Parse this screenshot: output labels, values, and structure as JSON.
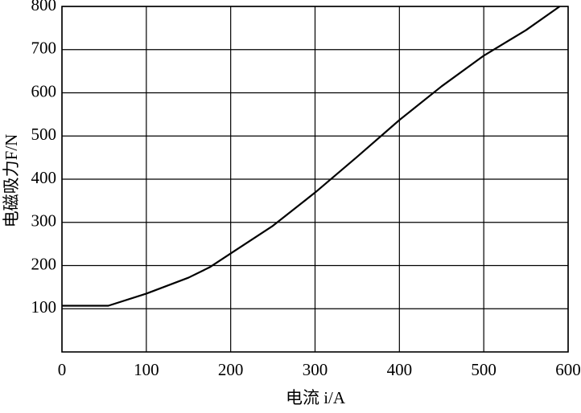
{
  "chart_data": {
    "type": "line",
    "x_label": "电流 i/A",
    "y_label": "电磁吸力F/N",
    "x": [
      0,
      55,
      100,
      150,
      175,
      200,
      250,
      300,
      350,
      400,
      450,
      500,
      550,
      590
    ],
    "series": [
      {
        "color": "#000000",
        "values": [
          107,
          107,
          135,
          172,
          196,
          228,
          292,
          369,
          452,
          537,
          615,
          686,
          745,
          800
        ]
      }
    ],
    "xlim": [
      0,
      600
    ],
    "xticks": [
      0,
      100,
      200,
      300,
      400,
      500,
      600
    ],
    "ylim": [
      0,
      800
    ],
    "yticks": [
      100,
      200,
      300,
      400,
      500,
      600,
      700,
      800
    ],
    "grid": true
  }
}
